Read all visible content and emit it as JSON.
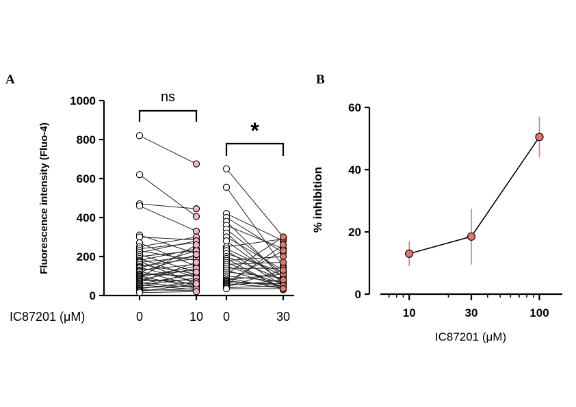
{
  "panels": {
    "a_letter": "A",
    "b_letter": "B"
  },
  "chart_data": [
    {
      "type": "scatter",
      "panel": "A",
      "title": "",
      "ylabel": "Fluorescence intensity (Fluo-4)",
      "xlabel": "IC87201 (μM)",
      "ylim": [
        0,
        1000
      ],
      "yticks": [
        0,
        200,
        400,
        600,
        800,
        1000
      ],
      "groups": [
        {
          "label": "0",
          "pair": 1,
          "color": "#ffffff"
        },
        {
          "label": "10",
          "pair": 1,
          "color": "#f2b6c2"
        },
        {
          "label": "0",
          "pair": 2,
          "color": "#ffffff"
        },
        {
          "label": "30",
          "pair": 2,
          "color": "#e0776f"
        }
      ],
      "comparisons": [
        {
          "pair": 1,
          "label": "ns"
        },
        {
          "pair": 2,
          "label": "*"
        }
      ],
      "pairs": [
        {
          "name": "0 vs 10",
          "before": [
            820,
            620,
            470,
            460,
            310,
            300,
            270,
            250,
            240,
            230,
            220,
            210,
            200,
            190,
            180,
            175,
            170,
            160,
            150,
            145,
            140,
            130,
            125,
            120,
            110,
            105,
            100,
            95,
            90,
            85,
            80,
            75,
            70,
            65,
            60,
            55,
            50,
            45,
            40,
            35,
            30,
            25,
            20,
            15
          ],
          "after": [
            675,
            405,
            445,
            330,
            215,
            285,
            150,
            300,
            270,
            180,
            280,
            120,
            230,
            90,
            240,
            60,
            200,
            110,
            190,
            70,
            230,
            160,
            50,
            210,
            100,
            130,
            40,
            150,
            260,
            60,
            140,
            80,
            170,
            40,
            110,
            30,
            90,
            120,
            50,
            70,
            25,
            35,
            60,
            20
          ]
        },
        {
          "name": "0 vs 30",
          "before": [
            650,
            555,
            420,
            400,
            380,
            360,
            340,
            320,
            300,
            280,
            250,
            240,
            230,
            215,
            200,
            190,
            180,
            170,
            160,
            150,
            140,
            130,
            120,
            110,
            100,
            90,
            80,
            75,
            70,
            65,
            60,
            55,
            50,
            45,
            40,
            35
          ],
          "after": [
            300,
            150,
            280,
            220,
            90,
            240,
            110,
            60,
            130,
            70,
            290,
            100,
            50,
            120,
            80,
            30,
            200,
            40,
            170,
            60,
            140,
            45,
            90,
            300,
            70,
            35,
            110,
            50,
            230,
            60,
            40,
            260,
            80,
            130,
            50,
            35
          ]
        }
      ]
    },
    {
      "type": "line",
      "panel": "B",
      "title": "",
      "xlabel": "IC87201 (μM)",
      "ylabel": "% inhibition",
      "xscale": "log",
      "xlim": [
        6,
        150
      ],
      "ylim": [
        0,
        60
      ],
      "xticks": [
        10,
        30,
        100
      ],
      "yticks": [
        0,
        20,
        40,
        60
      ],
      "color": "#e0776f",
      "series": [
        {
          "x": [
            10,
            30,
            100
          ],
          "y": [
            13,
            18.5,
            50.5
          ],
          "err": [
            4,
            9,
            6.5
          ]
        }
      ]
    }
  ]
}
